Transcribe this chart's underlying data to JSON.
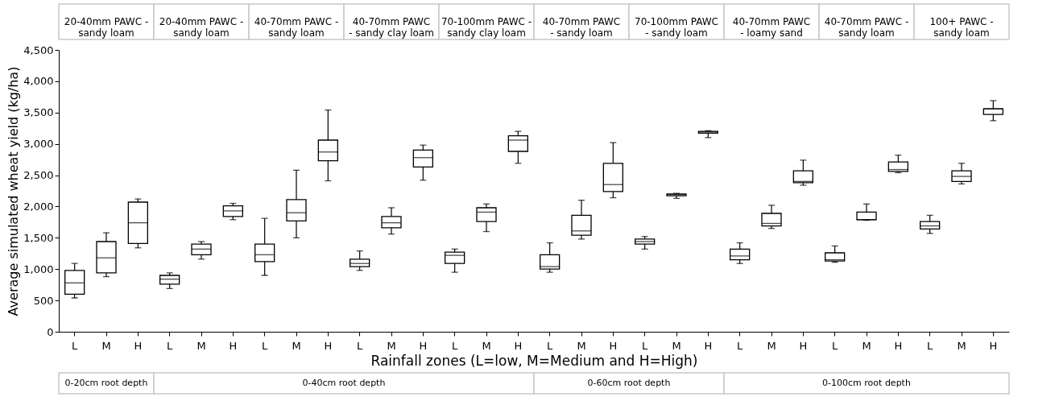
{
  "chart_data": {
    "type": "box",
    "xlabel": "Rainfall zones (L=low, M=Medium and H=High)",
    "ylabel": "Average simulated wheat yield (kg/ha)",
    "categories": [
      "L",
      "M",
      "H",
      "L",
      "M",
      "H",
      "L",
      "M",
      "H",
      "L",
      "M",
      "H",
      "L",
      "M",
      "H",
      "L",
      "M",
      "H",
      "L",
      "M",
      "H",
      "L",
      "M",
      "H",
      "L",
      "M",
      "H",
      "L",
      "M",
      "H"
    ],
    "boxes": [
      {
        "low": 540,
        "q1": 600,
        "median": 780,
        "q3": 980,
        "high": 1090
      },
      {
        "low": 880,
        "q1": 940,
        "median": 1180,
        "q3": 1440,
        "high": 1580
      },
      {
        "low": 1340,
        "q1": 1410,
        "median": 1740,
        "q3": 2070,
        "high": 2120
      },
      {
        "low": 690,
        "q1": 760,
        "median": 840,
        "q3": 900,
        "high": 940
      },
      {
        "low": 1160,
        "q1": 1230,
        "median": 1320,
        "q3": 1400,
        "high": 1440
      },
      {
        "low": 1790,
        "q1": 1840,
        "median": 1930,
        "q3": 2010,
        "high": 2050
      },
      {
        "low": 900,
        "q1": 1120,
        "median": 1230,
        "q3": 1400,
        "high": 1810
      },
      {
        "low": 1500,
        "q1": 1770,
        "median": 1900,
        "q3": 2110,
        "high": 2580
      },
      {
        "low": 2410,
        "q1": 2730,
        "median": 2870,
        "q3": 3060,
        "high": 3540
      },
      {
        "low": 980,
        "q1": 1040,
        "median": 1090,
        "q3": 1160,
        "high": 1290
      },
      {
        "low": 1560,
        "q1": 1660,
        "median": 1740,
        "q3": 1840,
        "high": 1980
      },
      {
        "low": 2420,
        "q1": 2630,
        "median": 2780,
        "q3": 2900,
        "high": 2980
      },
      {
        "low": 950,
        "q1": 1090,
        "median": 1220,
        "q3": 1270,
        "high": 1320
      },
      {
        "low": 1600,
        "q1": 1760,
        "median": 1910,
        "q3": 1980,
        "high": 2040
      },
      {
        "low": 2690,
        "q1": 2880,
        "median": 3060,
        "q3": 3130,
        "high": 3200
      },
      {
        "low": 950,
        "q1": 1000,
        "median": 1040,
        "q3": 1230,
        "high": 1420
      },
      {
        "low": 1480,
        "q1": 1540,
        "median": 1610,
        "q3": 1860,
        "high": 2100
      },
      {
        "low": 2140,
        "q1": 2240,
        "median": 2350,
        "q3": 2690,
        "high": 3020
      },
      {
        "low": 1320,
        "q1": 1400,
        "median": 1440,
        "q3": 1480,
        "high": 1520
      },
      {
        "low": 2130,
        "q1": 2170,
        "median": 2190,
        "q3": 2200,
        "high": 2210
      },
      {
        "low": 3100,
        "q1": 3170,
        "median": 3190,
        "q3": 3200,
        "high": 3210
      },
      {
        "low": 1090,
        "q1": 1150,
        "median": 1210,
        "q3": 1320,
        "high": 1420
      },
      {
        "low": 1650,
        "q1": 1690,
        "median": 1730,
        "q3": 1890,
        "high": 2020
      },
      {
        "low": 2340,
        "q1": 2380,
        "median": 2400,
        "q3": 2570,
        "high": 2740
      },
      {
        "low": 1110,
        "q1": 1130,
        "median": 1150,
        "q3": 1260,
        "high": 1370
      },
      {
        "low": 1780,
        "q1": 1790,
        "median": 1790,
        "q3": 1910,
        "high": 2040
      },
      {
        "low": 2540,
        "q1": 2560,
        "median": 2590,
        "q3": 2710,
        "high": 2820
      },
      {
        "low": 1570,
        "q1": 1640,
        "median": 1690,
        "q3": 1760,
        "high": 1860
      },
      {
        "low": 2360,
        "q1": 2400,
        "median": 2480,
        "q3": 2570,
        "high": 2690
      },
      {
        "low": 3370,
        "q1": 3470,
        "median": 3560,
        "q3": 3560,
        "high": 3690
      }
    ],
    "ylim": [
      0,
      4500
    ],
    "yticks": [
      0,
      500,
      {
        "value": 1000,
        "label": "1,000"
      },
      {
        "value": 1500,
        "label": "1,500"
      },
      {
        "value": 2000,
        "label": "2,000"
      },
      {
        "value": 2500,
        "label": "2,500"
      },
      {
        "value": 3000,
        "label": "3,000"
      },
      {
        "value": 3500,
        "label": "3,500"
      },
      {
        "value": 4000,
        "label": "4,000"
      },
      {
        "value": 4500,
        "label": "4,500"
      }
    ],
    "grid": false,
    "annotations": [
      "20-40mm PAWC -\nsandy loam",
      "20-40mm PAWC -\nsandy loam",
      "40-70mm PAWC -\nsandy loam",
      "40-70mm PAWC\n- sandy clay loam",
      "70-100mm PAWC -\nsandy clay loam",
      "40-70mm PAWC\n- sandy loam",
      "70-100mm PAWC\n- sandy loam",
      "40-70mm PAWC\n- loamy sand",
      "40-70mm PAWC -\nsandy loam",
      "100+ PAWC -\nsandy loam",
      "0-20cm root depth",
      "0-40cm root depth",
      "0-60cm root depth",
      "0-100cm root depth"
    ]
  }
}
